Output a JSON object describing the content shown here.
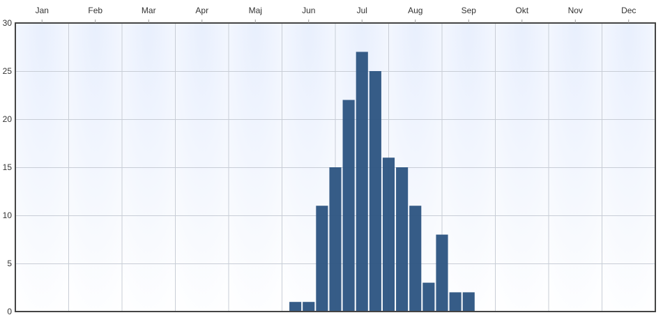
{
  "chart_data": {
    "type": "bar",
    "months": [
      "Jan",
      "Feb",
      "Mar",
      "Apr",
      "Maj",
      "Jun",
      "Jul",
      "Aug",
      "Sep",
      "Okt",
      "Nov",
      "Dec"
    ],
    "x_axis_position": "top",
    "yticks": [
      0,
      5,
      10,
      15,
      20,
      25,
      30
    ],
    "ylim": [
      0,
      30
    ],
    "grid": true,
    "bar_color": "#2f5783",
    "bars": [
      {
        "month_pos": 5.25,
        "value": 1
      },
      {
        "month_pos": 5.5,
        "value": 1
      },
      {
        "month_pos": 5.75,
        "value": 11
      },
      {
        "month_pos": 6.0,
        "value": 15
      },
      {
        "month_pos": 6.25,
        "value": 22
      },
      {
        "month_pos": 6.5,
        "value": 27
      },
      {
        "month_pos": 6.75,
        "value": 25
      },
      {
        "month_pos": 7.0,
        "value": 16
      },
      {
        "month_pos": 7.25,
        "value": 15
      },
      {
        "month_pos": 7.5,
        "value": 11
      },
      {
        "month_pos": 7.75,
        "value": 3
      },
      {
        "month_pos": 8.0,
        "value": 8
      },
      {
        "month_pos": 8.25,
        "value": 2
      },
      {
        "month_pos": 8.5,
        "value": 2
      }
    ]
  }
}
